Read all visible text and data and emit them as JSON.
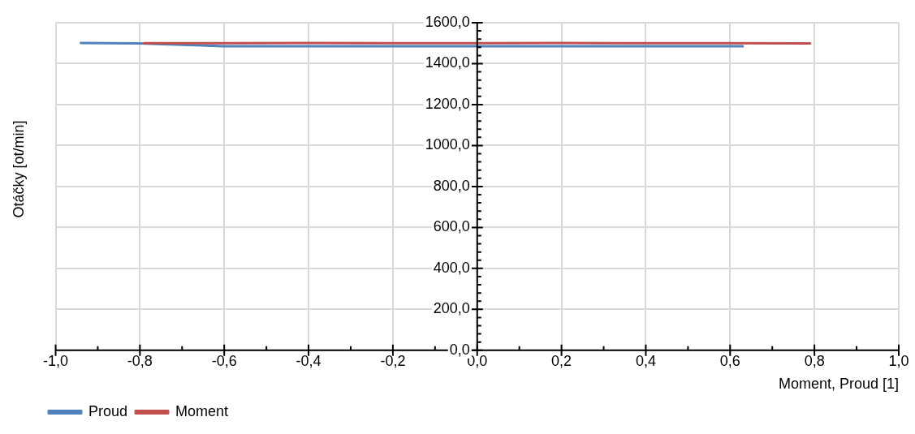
{
  "chart_data": {
    "type": "line",
    "xlabel": "Moment, Proud [1]",
    "ylabel": "Otáčky [ot/min]",
    "xlim": [
      -1,
      1
    ],
    "ylim": [
      0,
      1600
    ],
    "xticks": [
      {
        "value": -1,
        "label": "-1,0"
      },
      {
        "value": -0.8,
        "label": "-0,8"
      },
      {
        "value": -0.6,
        "label": "-0,6"
      },
      {
        "value": -0.4,
        "label": "-0,4"
      },
      {
        "value": -0.2,
        "label": "-0,2"
      },
      {
        "value": 0,
        "label": "0,0"
      },
      {
        "value": 0.2,
        "label": "0,2"
      },
      {
        "value": 0.4,
        "label": "0,4"
      },
      {
        "value": 0.6,
        "label": "0,6"
      },
      {
        "value": 0.8,
        "label": "0,8"
      },
      {
        "value": 1,
        "label": "1,0"
      }
    ],
    "yticks": [
      {
        "value": 0,
        "label": "0,0"
      },
      {
        "value": 200,
        "label": "200,0"
      },
      {
        "value": 400,
        "label": "400,0"
      },
      {
        "value": 600,
        "label": "600,0"
      },
      {
        "value": 800,
        "label": "800,0"
      },
      {
        "value": 1000,
        "label": "1000,0"
      },
      {
        "value": 1200,
        "label": "1200,0"
      },
      {
        "value": 1400,
        "label": "1400,0"
      },
      {
        "value": 1600,
        "label": "1600,0"
      }
    ],
    "grid": true,
    "legend": "bottom left",
    "marker": "none",
    "line_style": "solid",
    "series": [
      {
        "name": "Proud",
        "color": "#4f81bd",
        "x": [
          -0.94,
          -0.8,
          -0.6,
          -0.4,
          -0.2,
          0,
          0.2,
          0.4,
          0.63
        ],
        "values": [
          1501,
          1499,
          1485,
          1485,
          1485,
          1485,
          1485,
          1485,
          1485
        ]
      },
      {
        "name": "Moment",
        "color": "#c0504d",
        "x": [
          -0.79,
          -0.6,
          -0.4,
          -0.2,
          0,
          0.2,
          0.4,
          0.6,
          0.79
        ],
        "values": [
          1500,
          1500,
          1501,
          1500,
          1500,
          1501,
          1500,
          1500,
          1499
        ]
      }
    ]
  }
}
